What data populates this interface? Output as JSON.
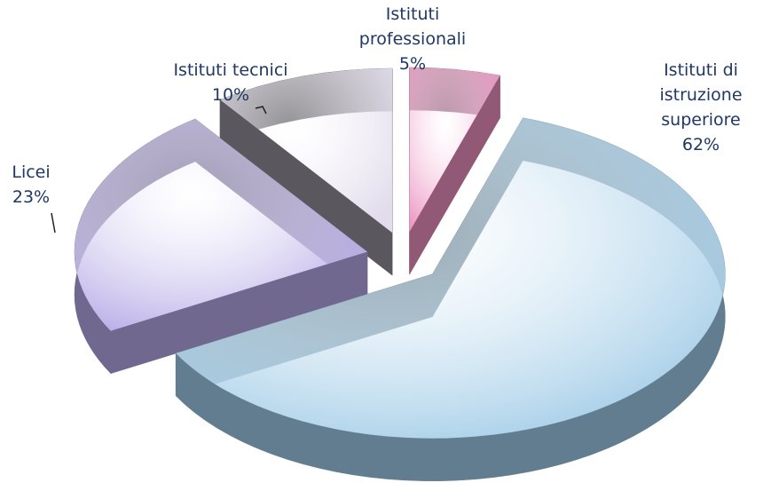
{
  "chart_data": {
    "type": "pie",
    "categories": [
      "Istituti professionali",
      "Istituti di istruzione superiore",
      "Licei",
      "Istituti tecnici"
    ],
    "values": [
      5,
      62,
      23,
      10
    ],
    "value_labels": [
      "5%",
      "62%",
      "23%",
      "10%"
    ],
    "colors": [
      "#ec8fc0",
      "#9ecae6",
      "#b4a8e6",
      "#e2dcec"
    ]
  }
}
